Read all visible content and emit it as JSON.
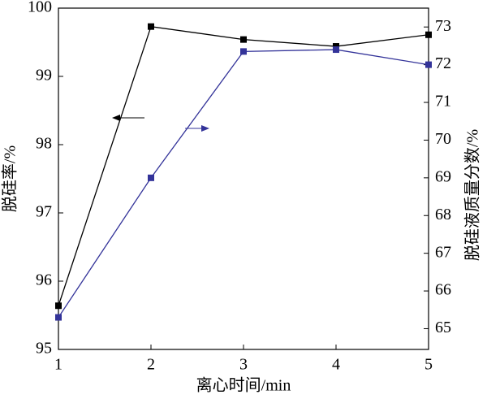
{
  "chart_data": {
    "type": "line",
    "x_label": "离心时间/min",
    "y_label": "脱硅率/%",
    "y2_label": "脱硅液质量分数/%",
    "x": [
      1,
      2,
      3,
      4,
      5
    ],
    "xlim": [
      1,
      5
    ],
    "xticks": [
      1,
      2,
      3,
      4,
      5
    ],
    "ylim": [
      95,
      100
    ],
    "yticks": [
      95,
      96,
      97,
      98,
      99,
      100
    ],
    "y2lim": [
      64.45,
      73.5
    ],
    "y2ticks": [
      65,
      66,
      67,
      68,
      69,
      70,
      71,
      72,
      73
    ],
    "series": [
      {
        "color": "#000000",
        "values": [
          95.64,
          99.73,
          99.54,
          99.44,
          99.61
        ]
      },
      {
        "color": "#333399",
        "axis": "y2",
        "values": [
          65.3,
          69.0,
          72.35,
          72.4,
          72.0
        ]
      }
    ]
  }
}
